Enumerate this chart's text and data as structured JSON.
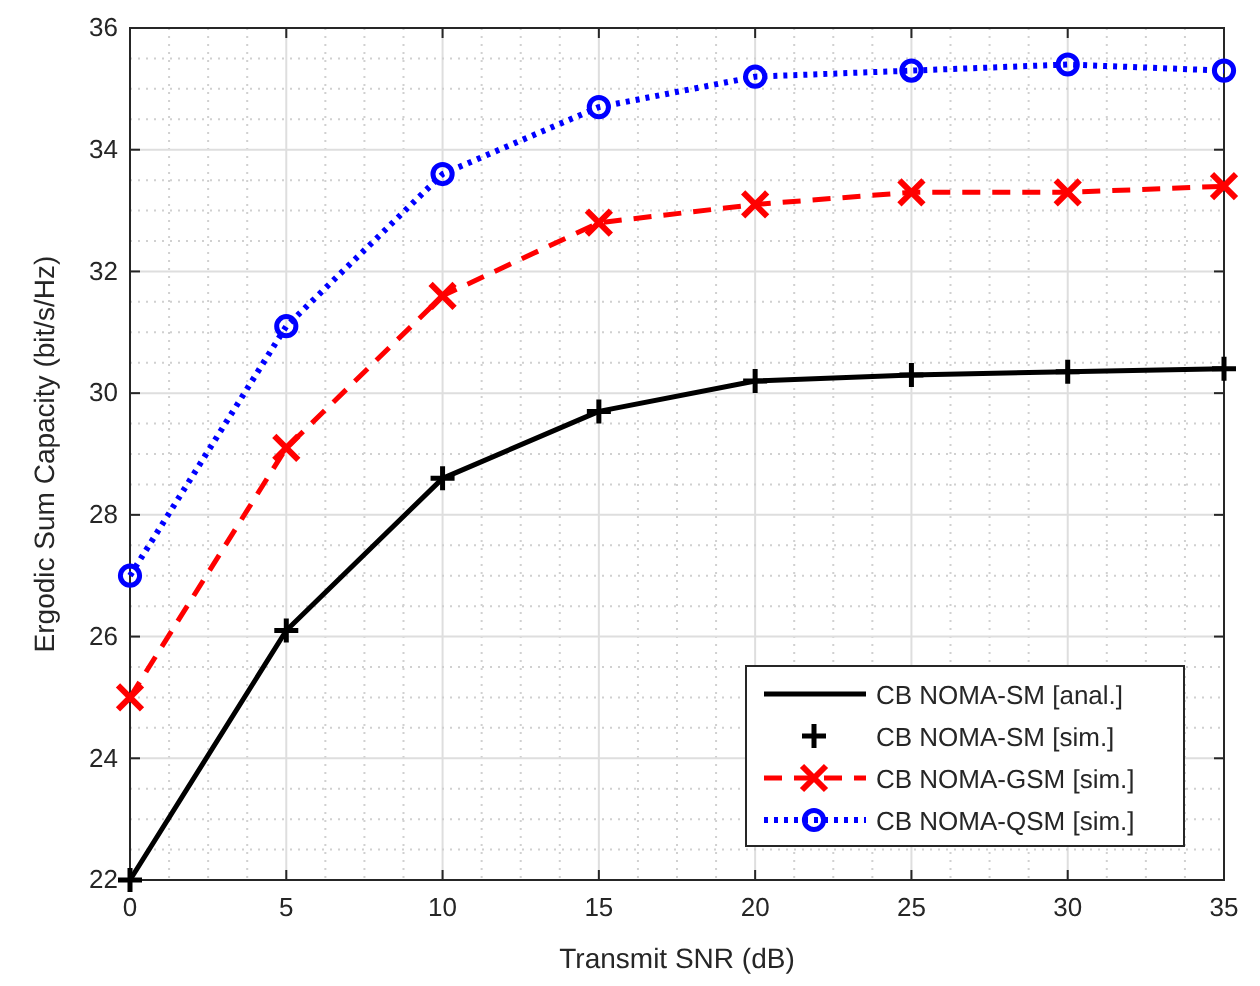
{
  "chart_data": {
    "type": "line",
    "xlabel": "Transmit SNR (dB)",
    "ylabel": "Ergodic Sum Capacity (bit/s/Hz)",
    "x": [
      0,
      5,
      10,
      15,
      20,
      25,
      30,
      35
    ],
    "series": [
      {
        "name": "CB NOMA-SM [anal.]",
        "color": "#000000",
        "type": "line",
        "marker": "none",
        "line_style": "solid",
        "values": [
          22,
          26.1,
          28.6,
          29.7,
          30.2,
          30.3,
          30.35,
          30.4
        ]
      },
      {
        "name": "CB NOMA-SM [sim.]",
        "color": "#000000",
        "type": "scatter",
        "marker": "plus",
        "values": [
          22,
          26.1,
          28.6,
          29.7,
          30.2,
          30.3,
          30.35,
          30.4
        ]
      },
      {
        "name": "CB NOMA-GSM [sim.]",
        "color": "#ff0000",
        "type": "line",
        "marker": "cross",
        "line_style": "dashed",
        "values": [
          25.0,
          29.1,
          31.6,
          32.8,
          33.1,
          33.3,
          33.3,
          33.4
        ]
      },
      {
        "name": "CB NOMA-QSM [sim.]",
        "color": "#0000ff",
        "type": "line",
        "marker": "circle",
        "line_style": "dotted",
        "values": [
          27.0,
          31.1,
          33.6,
          34.7,
          35.2,
          35.3,
          35.4,
          35.3
        ]
      }
    ],
    "xlim": [
      0,
      35
    ],
    "xticks": [
      0,
      5,
      10,
      15,
      20,
      25,
      30,
      35
    ],
    "ylim": [
      22,
      36
    ],
    "yticks": [
      22,
      24,
      26,
      28,
      30,
      32,
      34,
      36
    ],
    "grid": true,
    "legend": "bottom right"
  }
}
